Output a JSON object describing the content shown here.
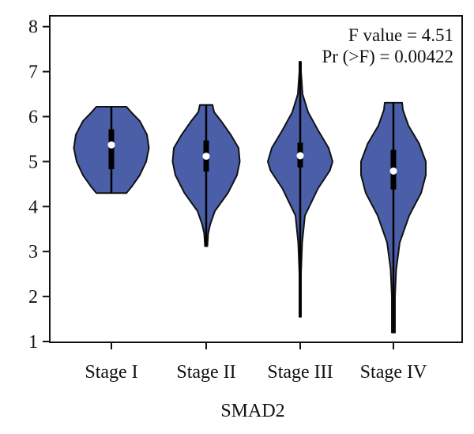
{
  "chart_data": {
    "type": "violin",
    "xlabel": "SMAD2",
    "ylabel": "",
    "ylim": [
      1,
      8
    ],
    "yticks": [
      1,
      2,
      3,
      4,
      5,
      6,
      7,
      8
    ],
    "categories": [
      "Stage I",
      "Stage II",
      "Stage III",
      "Stage IV"
    ],
    "annotations": [
      "F value = 4.51",
      "Pr (>F) = 0.00422"
    ],
    "grid": false,
    "colors": {
      "violin_fill": "#4a5fa8",
      "violin_stroke": "#111111",
      "box": "#000000",
      "median": "#ffffff"
    },
    "violins": [
      {
        "category": "Stage I",
        "min": 4.3,
        "q1": 4.83,
        "median": 5.37,
        "q3": 5.72,
        "max": 6.22,
        "density": [
          [
            4.3,
            0.38
          ],
          [
            4.45,
            0.52
          ],
          [
            4.7,
            0.72
          ],
          [
            5.0,
            0.88
          ],
          [
            5.3,
            0.95
          ],
          [
            5.6,
            0.9
          ],
          [
            5.9,
            0.72
          ],
          [
            6.1,
            0.5
          ],
          [
            6.22,
            0.38
          ]
        ]
      },
      {
        "category": "Stage II",
        "min": 3.12,
        "q1": 4.78,
        "median": 5.12,
        "q3": 5.47,
        "max": 6.26,
        "density": [
          [
            3.12,
            0.03
          ],
          [
            3.4,
            0.05
          ],
          [
            3.6,
            0.1
          ],
          [
            3.9,
            0.22
          ],
          [
            4.3,
            0.55
          ],
          [
            4.7,
            0.78
          ],
          [
            5.0,
            0.85
          ],
          [
            5.3,
            0.82
          ],
          [
            5.6,
            0.62
          ],
          [
            5.9,
            0.38
          ],
          [
            6.1,
            0.2
          ],
          [
            6.26,
            0.16
          ]
        ]
      },
      {
        "category": "Stage III",
        "min": 1.55,
        "q1": 4.87,
        "median": 5.13,
        "q3": 5.42,
        "max": 7.22,
        "density": [
          [
            1.55,
            0.02
          ],
          [
            2.5,
            0.02
          ],
          [
            3.2,
            0.05
          ],
          [
            3.8,
            0.12
          ],
          [
            4.4,
            0.45
          ],
          [
            4.8,
            0.75
          ],
          [
            5.0,
            0.82
          ],
          [
            5.3,
            0.72
          ],
          [
            5.7,
            0.45
          ],
          [
            6.1,
            0.2
          ],
          [
            6.5,
            0.06
          ],
          [
            7.0,
            0.02
          ],
          [
            7.22,
            0.02
          ]
        ]
      },
      {
        "category": "Stage IV",
        "min": 1.2,
        "q1": 4.38,
        "median": 4.79,
        "q3": 5.26,
        "max": 6.31,
        "density": [
          [
            1.2,
            0.04
          ],
          [
            2.0,
            0.04
          ],
          [
            2.6,
            0.07
          ],
          [
            3.2,
            0.16
          ],
          [
            3.8,
            0.4
          ],
          [
            4.3,
            0.7
          ],
          [
            4.7,
            0.82
          ],
          [
            5.0,
            0.82
          ],
          [
            5.4,
            0.65
          ],
          [
            5.8,
            0.38
          ],
          [
            6.15,
            0.24
          ],
          [
            6.31,
            0.22
          ]
        ]
      }
    ]
  }
}
